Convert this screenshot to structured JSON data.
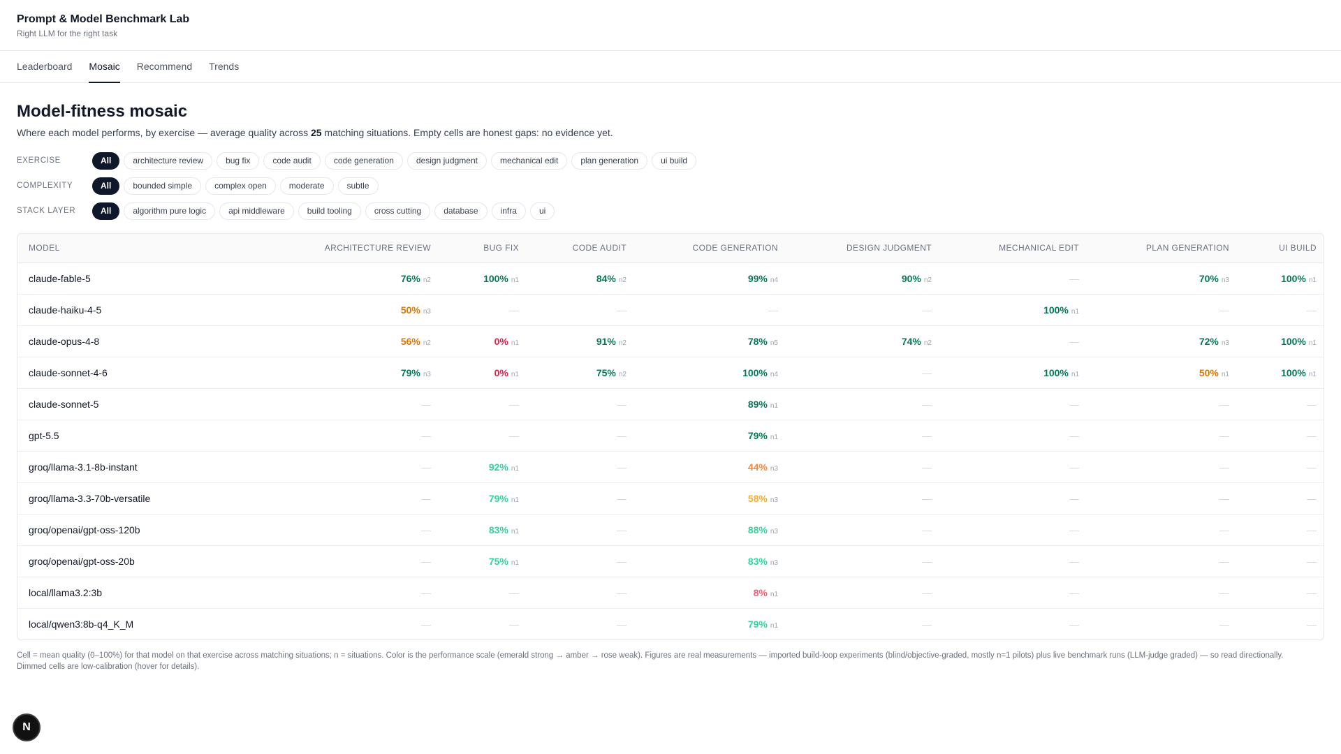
{
  "header": {
    "title": "Prompt & Model Benchmark Lab",
    "subtitle": "Right LLM for the right task"
  },
  "tabs": [
    {
      "label": "Leaderboard",
      "active": false
    },
    {
      "label": "Mosaic",
      "active": true
    },
    {
      "label": "Recommend",
      "active": false
    },
    {
      "label": "Trends",
      "active": false
    }
  ],
  "page": {
    "title": "Model-fitness mosaic",
    "desc_before": "Where each model performs, by exercise — average quality across ",
    "desc_count": "25",
    "desc_after": " matching situations. Empty cells are honest gaps: no evidence yet."
  },
  "filters": [
    {
      "label": "Exercise",
      "options": [
        "All",
        "architecture review",
        "bug fix",
        "code audit",
        "code generation",
        "design judgment",
        "mechanical edit",
        "plan generation",
        "ui build"
      ],
      "selected": "All"
    },
    {
      "label": "Complexity",
      "options": [
        "All",
        "bounded simple",
        "complex open",
        "moderate",
        "subtle"
      ],
      "selected": "All"
    },
    {
      "label": "Stack layer",
      "options": [
        "All",
        "algorithm pure logic",
        "api middleware",
        "build tooling",
        "cross cutting",
        "database",
        "infra",
        "ui"
      ],
      "selected": "All"
    }
  ],
  "table": {
    "columns": [
      "Model",
      "Architecture review",
      "Bug fix",
      "Code audit",
      "Code generation",
      "Design judgment",
      "Mechanical edit",
      "Plan generation",
      "UI build"
    ],
    "rows": [
      {
        "model": "claude-fable-5",
        "cells": [
          {
            "v": "76%",
            "n": "n2",
            "c": "strong"
          },
          {
            "v": "100%",
            "n": "n1",
            "c": "strong"
          },
          {
            "v": "84%",
            "n": "n2",
            "c": "strong"
          },
          {
            "v": "99%",
            "n": "n4",
            "c": "strong"
          },
          {
            "v": "90%",
            "n": "n2",
            "c": "strong"
          },
          null,
          {
            "v": "70%",
            "n": "n3",
            "c": "strong"
          },
          {
            "v": "100%",
            "n": "n1",
            "c": "strong"
          }
        ]
      },
      {
        "model": "claude-haiku-4-5",
        "cells": [
          {
            "v": "50%",
            "n": "n3",
            "c": "amber"
          },
          null,
          null,
          null,
          null,
          {
            "v": "100%",
            "n": "n1",
            "c": "strong"
          },
          null,
          null
        ]
      },
      {
        "model": "claude-opus-4-8",
        "cells": [
          {
            "v": "56%",
            "n": "n2",
            "c": "amber"
          },
          {
            "v": "0%",
            "n": "n1",
            "c": "rose"
          },
          {
            "v": "91%",
            "n": "n2",
            "c": "strong"
          },
          {
            "v": "78%",
            "n": "n5",
            "c": "strong"
          },
          {
            "v": "74%",
            "n": "n2",
            "c": "strong"
          },
          null,
          {
            "v": "72%",
            "n": "n3",
            "c": "strong"
          },
          {
            "v": "100%",
            "n": "n1",
            "c": "strong"
          }
        ]
      },
      {
        "model": "claude-sonnet-4-6",
        "cells": [
          {
            "v": "79%",
            "n": "n3",
            "c": "strong"
          },
          {
            "v": "0%",
            "n": "n1",
            "c": "rose"
          },
          {
            "v": "75%",
            "n": "n2",
            "c": "strong"
          },
          {
            "v": "100%",
            "n": "n4",
            "c": "strong"
          },
          null,
          {
            "v": "100%",
            "n": "n1",
            "c": "strong"
          },
          {
            "v": "50%",
            "n": "n1",
            "c": "amber"
          },
          {
            "v": "100%",
            "n": "n1",
            "c": "strong"
          }
        ]
      },
      {
        "model": "claude-sonnet-5",
        "cells": [
          null,
          null,
          null,
          {
            "v": "89%",
            "n": "n1",
            "c": "strong"
          },
          null,
          null,
          null,
          null
        ]
      },
      {
        "model": "gpt-5.5",
        "cells": [
          null,
          null,
          null,
          {
            "v": "79%",
            "n": "n1",
            "c": "strong"
          },
          null,
          null,
          null,
          null
        ]
      },
      {
        "model": "groq/llama-3.1-8b-instant",
        "cells": [
          null,
          {
            "v": "92%",
            "n": "n1",
            "c": "light"
          },
          null,
          {
            "v": "44%",
            "n": "n3",
            "c": "orange-dim"
          },
          null,
          null,
          null,
          null
        ]
      },
      {
        "model": "groq/llama-3.3-70b-versatile",
        "cells": [
          null,
          {
            "v": "79%",
            "n": "n1",
            "c": "light"
          },
          null,
          {
            "v": "58%",
            "n": "n3",
            "c": "amber-dim"
          },
          null,
          null,
          null,
          null
        ]
      },
      {
        "model": "groq/openai/gpt-oss-120b",
        "cells": [
          null,
          {
            "v": "83%",
            "n": "n1",
            "c": "light"
          },
          null,
          {
            "v": "88%",
            "n": "n3",
            "c": "light"
          },
          null,
          null,
          null,
          null
        ]
      },
      {
        "model": "groq/openai/gpt-oss-20b",
        "cells": [
          null,
          {
            "v": "75%",
            "n": "n1",
            "c": "light"
          },
          null,
          {
            "v": "83%",
            "n": "n3",
            "c": "light"
          },
          null,
          null,
          null,
          null
        ]
      },
      {
        "model": "local/llama3.2:3b",
        "cells": [
          null,
          null,
          null,
          {
            "v": "8%",
            "n": "n1",
            "c": "rose-dim"
          },
          null,
          null,
          null,
          null
        ]
      },
      {
        "model": "local/qwen3:8b-q4_K_M",
        "cells": [
          null,
          null,
          null,
          {
            "v": "79%",
            "n": "n1",
            "c": "light"
          },
          null,
          null,
          null,
          null
        ]
      }
    ],
    "empty_symbol": "—"
  },
  "footnote": "Cell = mean quality (0–100%) for that model on that exercise across matching situations; n = situations. Color is the performance scale (emerald strong → amber → rose weak). Figures are real measurements — imported build-loop experiments (blind/objective-graded, mostly n=1 pilots) plus live benchmark runs (LLM-judge graded) — so read directionally. Dimmed cells are low-calibration (hover for details).",
  "badge": {
    "label": "N",
    "icon": "nextjs-icon"
  },
  "colors": {
    "strong": "#047857",
    "light": "#34d399",
    "amber": "#d97706",
    "rose": "#e11d48",
    "chip_active": "#0f172a"
  }
}
